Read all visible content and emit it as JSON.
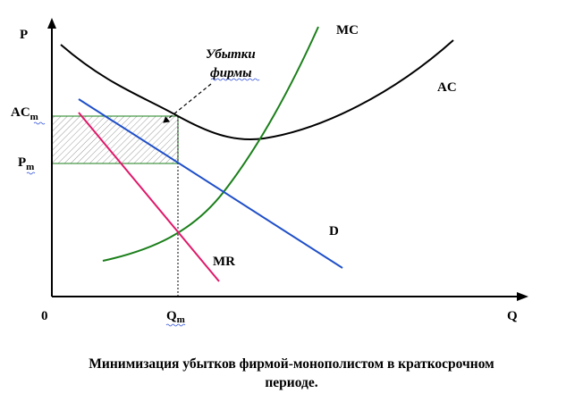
{
  "axes": {
    "y_label": "P",
    "x_label": "Q",
    "origin_label": "0"
  },
  "ticks": {
    "ac_main": "AC",
    "ac_sub": "m",
    "p_main": "P",
    "p_sub": "m",
    "q_main": "Q",
    "q_sub": "m"
  },
  "curves": {
    "mc": "MC",
    "ac": "AC",
    "d": "D",
    "mr": "MR"
  },
  "annotation": {
    "line1": "Убытки",
    "line2": "фирмы"
  },
  "caption": {
    "line1": "Минимизация убытков фирмой-монополистом в краткосрочном",
    "line2": "периоде."
  },
  "colors": {
    "ac": "#000000",
    "mc": "#1a7f1a",
    "demand": "#1f4fc8",
    "mr": "#e0186a",
    "loss_box": "#1a7f1a",
    "spellcheck": "#3b5bdb"
  }
}
